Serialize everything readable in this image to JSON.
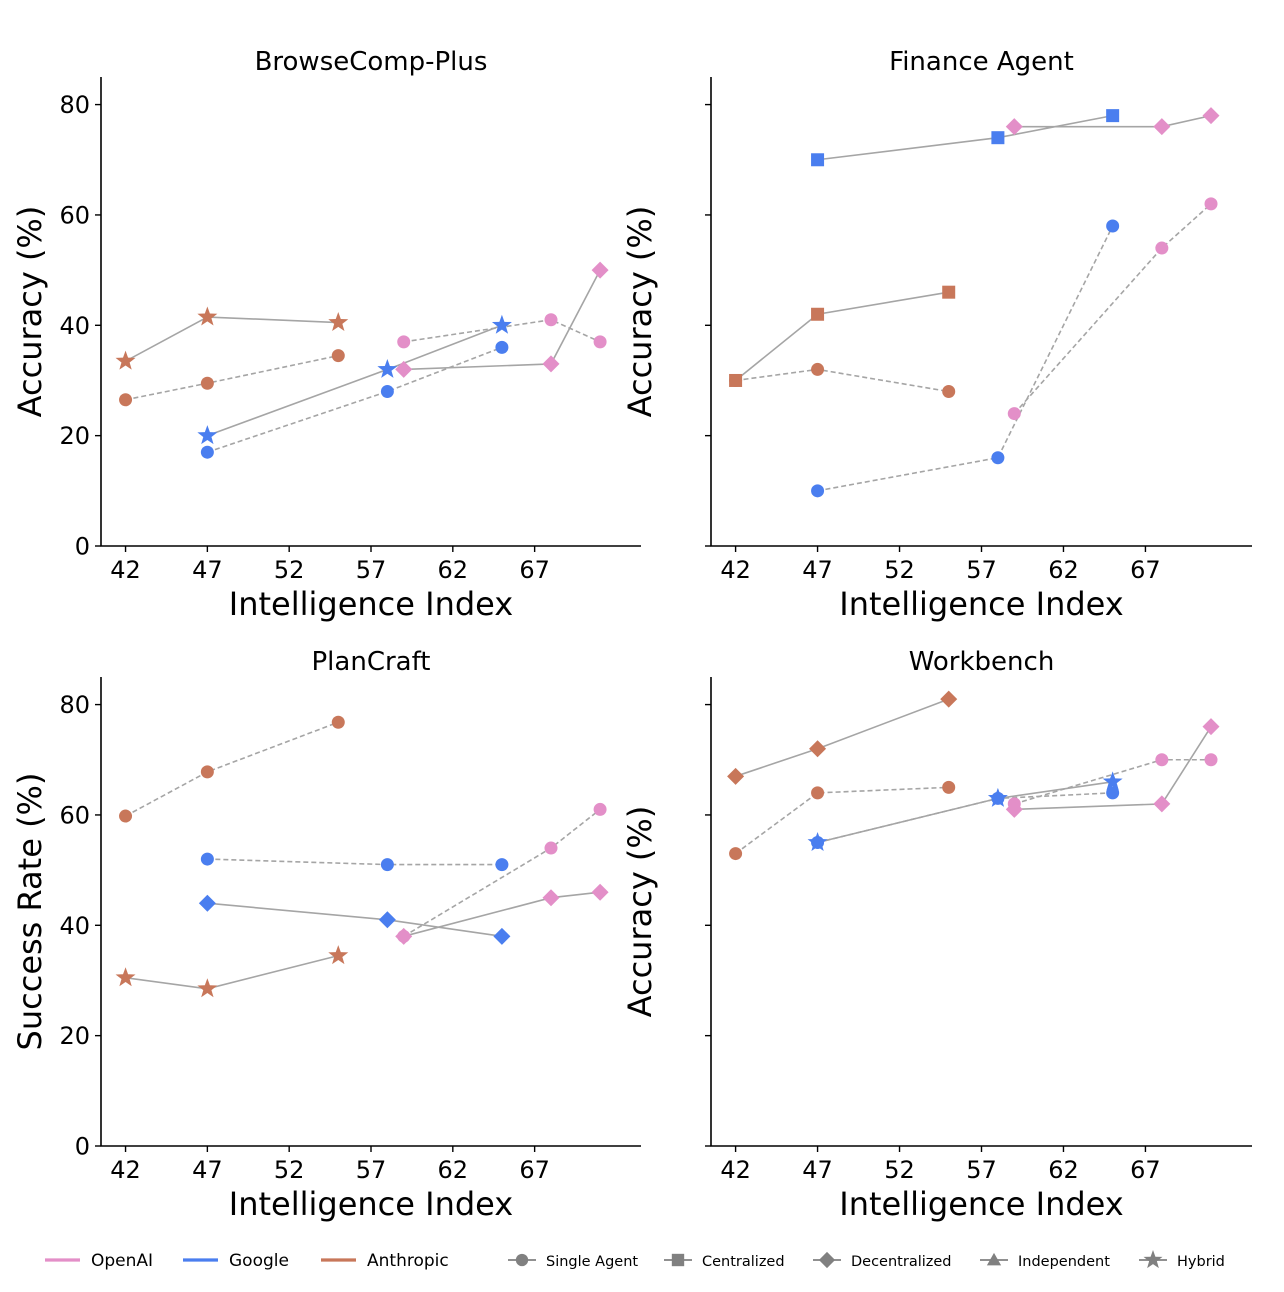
{
  "colors": {
    "OpenAI": "#e38fc8",
    "Google": "#4a7eef",
    "Anthropic": "#c8775a",
    "line": "#a5a5a5",
    "legend_marker": "#808080"
  },
  "legend": {
    "companies": [
      "OpenAI",
      "Google",
      "Anthropic"
    ],
    "architectures": [
      {
        "name": "Single Agent",
        "marker": "circle"
      },
      {
        "name": "Centralized",
        "marker": "square"
      },
      {
        "name": "Decentralized",
        "marker": "diamond"
      },
      {
        "name": "Independent",
        "marker": "triangle"
      },
      {
        "name": "Hybrid",
        "marker": "star"
      }
    ]
  },
  "chart_data": [
    {
      "type": "line",
      "title": "BrowseComp-Plus",
      "xlabel": "Intelligence Index",
      "ylabel": "Accuracy (%)",
      "xlim": [
        40.5,
        73.5
      ],
      "ylim": [
        0,
        85
      ],
      "xticks": [
        42,
        47,
        52,
        57,
        62,
        67
      ],
      "yticks": [
        0,
        20,
        40,
        60,
        80
      ],
      "show_ytick_labels": true,
      "series": [
        {
          "company": "Anthropic",
          "arch": "Hybrid",
          "x": [
            42,
            47,
            55
          ],
          "y": [
            33.5,
            41.5,
            40.5
          ]
        },
        {
          "company": "Anthropic",
          "arch": "Single Agent",
          "x": [
            42,
            47,
            55
          ],
          "y": [
            26.5,
            29.5,
            34.5
          ]
        },
        {
          "company": "Google",
          "arch": "Hybrid",
          "x": [
            47,
            58,
            65
          ],
          "y": [
            20,
            32,
            40
          ]
        },
        {
          "company": "Google",
          "arch": "Single Agent",
          "x": [
            47,
            58,
            65
          ],
          "y": [
            17,
            28,
            36
          ]
        },
        {
          "company": "OpenAI",
          "arch": "Single Agent",
          "x": [
            59,
            68,
            71
          ],
          "y": [
            37,
            41,
            37
          ]
        },
        {
          "company": "OpenAI",
          "arch": "Decentralized",
          "x": [
            59,
            68,
            71
          ],
          "y": [
            32,
            33,
            50
          ]
        }
      ]
    },
    {
      "type": "line",
      "title": "Finance Agent",
      "xlabel": "Intelligence Index",
      "ylabel": "Accuracy (%)",
      "xlim": [
        40.5,
        73.5
      ],
      "ylim": [
        0,
        85
      ],
      "xticks": [
        42,
        47,
        52,
        57,
        62,
        67
      ],
      "yticks": [
        0,
        20,
        40,
        60,
        80
      ],
      "show_ytick_labels": false,
      "series": [
        {
          "company": "Google",
          "arch": "Centralized",
          "x": [
            47,
            58,
            65
          ],
          "y": [
            70,
            74,
            78
          ]
        },
        {
          "company": "OpenAI",
          "arch": "Decentralized",
          "x": [
            59,
            68,
            71
          ],
          "y": [
            76,
            76,
            78
          ]
        },
        {
          "company": "Anthropic",
          "arch": "Centralized",
          "x": [
            42,
            47,
            55
          ],
          "y": [
            30,
            42,
            46
          ]
        },
        {
          "company": "Anthropic",
          "arch": "Single Agent",
          "x": [
            42,
            47,
            55
          ],
          "y": [
            30,
            32,
            28
          ]
        },
        {
          "company": "Google",
          "arch": "Single Agent",
          "x": [
            47,
            58,
            65
          ],
          "y": [
            10,
            16,
            58
          ]
        },
        {
          "company": "OpenAI",
          "arch": "Single Agent",
          "x": [
            59,
            68,
            71
          ],
          "y": [
            24,
            54,
            62
          ]
        }
      ]
    },
    {
      "type": "line",
      "title": "PlanCraft",
      "xlabel": "Intelligence Index",
      "ylabel": "Success Rate (%)",
      "xlim": [
        40.5,
        73.5
      ],
      "ylim": [
        0,
        85
      ],
      "xticks": [
        42,
        47,
        52,
        57,
        62,
        67
      ],
      "yticks": [
        0,
        20,
        40,
        60,
        80
      ],
      "show_ytick_labels": true,
      "series": [
        {
          "company": "Anthropic",
          "arch": "Single Agent",
          "x": [
            42,
            47,
            55
          ],
          "y": [
            59.8,
            67.8,
            76.8
          ]
        },
        {
          "company": "Google",
          "arch": "Single Agent",
          "x": [
            47,
            58,
            65
          ],
          "y": [
            52,
            51,
            51
          ]
        },
        {
          "company": "Google",
          "arch": "Decentralized",
          "x": [
            47,
            58,
            65
          ],
          "y": [
            44,
            41,
            38
          ]
        },
        {
          "company": "OpenAI",
          "arch": "Single Agent",
          "x": [
            59,
            68,
            71
          ],
          "y": [
            38,
            54,
            61
          ]
        },
        {
          "company": "OpenAI",
          "arch": "Decentralized",
          "x": [
            59,
            68,
            71
          ],
          "y": [
            38,
            45,
            46
          ]
        },
        {
          "company": "Anthropic",
          "arch": "Hybrid",
          "x": [
            42,
            47,
            55
          ],
          "y": [
            30.5,
            28.5,
            34.5
          ]
        }
      ]
    },
    {
      "type": "line",
      "title": "Workbench",
      "xlabel": "Intelligence Index",
      "ylabel": "Accuracy (%)",
      "xlim": [
        40.5,
        73.5
      ],
      "ylim": [
        0,
        85
      ],
      "xticks": [
        42,
        47,
        52,
        57,
        62,
        67
      ],
      "yticks": [
        0,
        20,
        40,
        60,
        80
      ],
      "show_ytick_labels": false,
      "series": [
        {
          "company": "Anthropic",
          "arch": "Decentralized",
          "x": [
            42,
            47,
            55
          ],
          "y": [
            67,
            72,
            81
          ]
        },
        {
          "company": "Anthropic",
          "arch": "Single Agent",
          "x": [
            42,
            47,
            55
          ],
          "y": [
            53,
            64,
            65
          ]
        },
        {
          "company": "Google",
          "arch": "Hybrid",
          "x": [
            47,
            58,
            65
          ],
          "y": [
            55,
            63,
            66
          ]
        },
        {
          "company": "Google",
          "arch": "Single Agent",
          "x": [
            47,
            58,
            65
          ],
          "y": [
            55,
            63,
            64
          ]
        },
        {
          "company": "OpenAI",
          "arch": "Single Agent",
          "x": [
            59,
            68,
            71
          ],
          "y": [
            62,
            70,
            70
          ]
        },
        {
          "company": "OpenAI",
          "arch": "Decentralized",
          "x": [
            59,
            68,
            71
          ],
          "y": [
            61,
            62,
            76
          ]
        }
      ]
    }
  ]
}
